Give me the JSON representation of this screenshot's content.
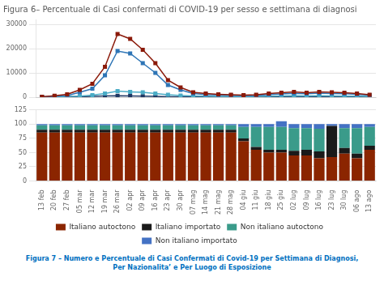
{
  "chart_data": [
    {
      "type": "line",
      "title": "Figura 6– Percentuale di Casi confermati di COVID-19 per sesso e settimana di diagnosi",
      "categories": [
        "13 feb",
        "20 feb",
        "27 feb",
        "05 mar",
        "12 mar",
        "19 mar",
        "26 mar",
        "02 apr",
        "09 apr",
        "16 apr",
        "23 apr",
        "30 apr",
        "07 mag",
        "14 mag",
        "21 mag",
        "28 mag",
        "04 giu",
        "11 giu",
        "18 giu",
        "25 giu",
        "02 lug",
        "09 lug",
        "16 lug",
        "23 lug",
        "30 lug",
        "06 ago",
        "13 ago"
      ],
      "series": [
        {
          "color": "#8B1A0A",
          "marker": "square",
          "values": [
            200,
            600,
            1200,
            3000,
            5500,
            12500,
            26000,
            24000,
            19500,
            14000,
            7000,
            4000,
            2000,
            1500,
            1200,
            1000,
            800,
            1000,
            1500,
            1800,
            2200,
            1800,
            2200,
            2000,
            1800,
            1500,
            1000
          ]
        },
        {
          "color": "#2E75B6",
          "marker": "square",
          "values": [
            100,
            300,
            700,
            2000,
            3500,
            9000,
            19000,
            18000,
            14000,
            10000,
            5000,
            3000,
            1500,
            1100,
            900,
            750,
            600,
            700,
            1100,
            1300,
            1600,
            1400,
            1700,
            1500,
            1400,
            1200,
            800
          ]
        },
        {
          "color": "#4BACC6",
          "marker": "square",
          "values": [
            50,
            150,
            300,
            400,
            800,
            1500,
            2500,
            2200,
            2000,
            1500,
            1000,
            700,
            500,
            400,
            350,
            300,
            250,
            300,
            400,
            500,
            600,
            500,
            550,
            500,
            450,
            400,
            300
          ]
        },
        {
          "color": "#1F3864",
          "marker": "square",
          "values": [
            20,
            80,
            150,
            200,
            300,
            500,
            600,
            500,
            400,
            300,
            200,
            150,
            100,
            80,
            70,
            60,
            50,
            60,
            80,
            100,
            120,
            100,
            110,
            100,
            90,
            80,
            60
          ]
        }
      ],
      "ylim": [
        0,
        32000
      ],
      "yticks": [
        0,
        10000,
        20000,
        30000
      ],
      "grid": true,
      "tick_labels": "y"
    },
    {
      "type": "bar",
      "stacked": true,
      "categories": [
        "13 feb",
        "20 feb",
        "27 feb",
        "05 mar",
        "12 mar",
        "19 mar",
        "26 mar",
        "02 apr",
        "09 apr",
        "16 apr",
        "23 apr",
        "30 apr",
        "07 mag",
        "14 mag",
        "21 mag",
        "28 mag",
        "04 giu",
        "11 giu",
        "18 giu",
        "25 giu",
        "02 lug",
        "09 lug",
        "16 lug",
        "23 lug",
        "30 lug",
        "06 ago",
        "13 ago"
      ],
      "series": [
        {
          "name": "Italiano autoctono",
          "color": "#8B2500",
          "values": [
            85,
            85,
            85,
            85,
            85,
            85,
            85,
            85,
            85,
            85,
            85,
            85,
            85,
            85,
            85,
            85,
            70,
            55,
            50,
            50,
            45,
            45,
            40,
            42,
            48,
            40,
            55
          ]
        },
        {
          "name": "Italiano importato",
          "color": "#1A1A1A",
          "values": [
            5,
            5,
            5,
            5,
            5,
            5,
            5,
            5,
            5,
            5,
            5,
            5,
            5,
            5,
            5,
            5,
            5,
            5,
            5,
            5,
            8,
            10,
            12,
            55,
            10,
            8,
            7
          ]
        },
        {
          "name": "Non italiano autoctono",
          "color": "#3A9B8A",
          "values": [
            8,
            8,
            8,
            8,
            8,
            8,
            8,
            8,
            8,
            8,
            8,
            8,
            8,
            8,
            8,
            8,
            20,
            35,
            40,
            40,
            40,
            38,
            40,
            0,
            35,
            45,
            33
          ]
        },
        {
          "name": "Non italiano importato",
          "color": "#4472C4",
          "values": [
            2,
            2,
            2,
            2,
            2,
            2,
            2,
            2,
            2,
            2,
            2,
            2,
            2,
            2,
            2,
            2,
            5,
            5,
            5,
            10,
            7,
            7,
            8,
            3,
            7,
            7,
            5
          ]
        }
      ],
      "ylim": [
        0,
        125
      ],
      "yticks": [
        0,
        25,
        50,
        75,
        100,
        125
      ],
      "grid": true,
      "legend": "bottom",
      "annotations": [
        "Figura 7 – Numero e Percentuale di Casi Confermati di Covid-19 per Settimana di Diagnosi,\nPer Nazionalita’ e Per Luogo di Esposizione"
      ]
    }
  ]
}
